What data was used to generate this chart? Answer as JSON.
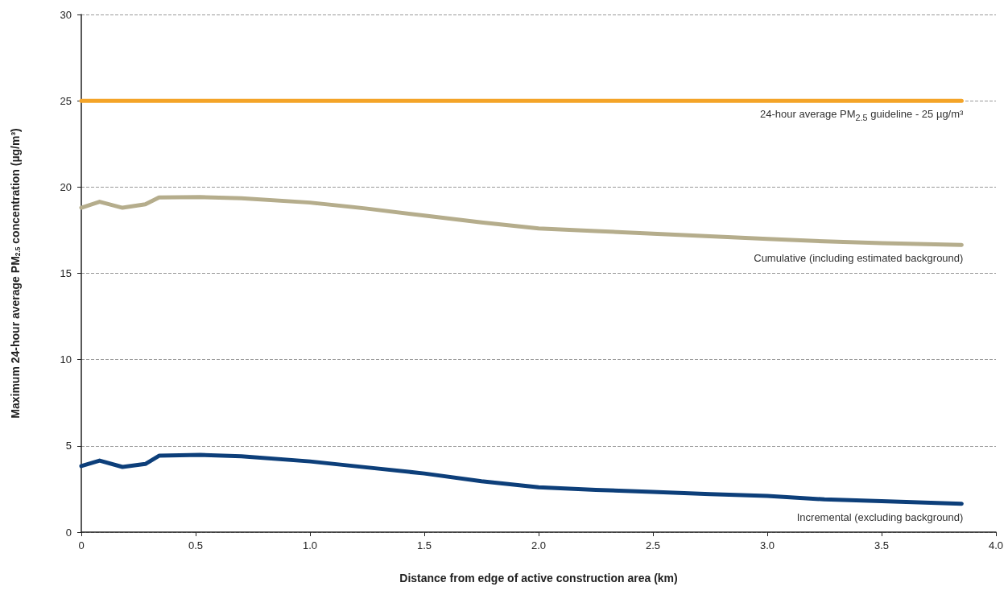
{
  "chart_data": {
    "type": "line",
    "xlabel": "Distance from edge of active construction area (km)",
    "ylabel": "Maximum 24-hour average PM$_{2.5}$ concentration (µg/m³)",
    "x": [
      0,
      0.08,
      0.18,
      0.28,
      0.34,
      0.52,
      0.7,
      1.0,
      1.25,
      1.5,
      1.75,
      2.0,
      2.25,
      2.5,
      2.75,
      3.0,
      3.25,
      3.5,
      3.85
    ],
    "series": [
      {
        "name": "24-hour average PM$_{2.5}$ guideline - 25 µg/m³",
        "color": "#f4a428",
        "x": [
          0,
          3.85
        ],
        "values": [
          25,
          25
        ]
      },
      {
        "name": "Cumulative (including estimated background)",
        "color": "#b5ad8c",
        "values": [
          18.8,
          19.15,
          18.8,
          19.0,
          19.4,
          19.42,
          19.35,
          19.1,
          18.75,
          18.35,
          17.95,
          17.6,
          17.45,
          17.3,
          17.15,
          17.0,
          16.85,
          16.75,
          16.65
        ]
      },
      {
        "name": "Incremental (excluding background)",
        "color": "#0d3f7a",
        "values": [
          3.83,
          4.15,
          3.78,
          3.95,
          4.43,
          4.48,
          4.4,
          4.1,
          3.75,
          3.4,
          2.95,
          2.6,
          2.45,
          2.33,
          2.2,
          2.1,
          1.9,
          1.8,
          1.65
        ]
      }
    ],
    "xlim": [
      0,
      4.0
    ],
    "xticks": [
      0,
      0.5,
      {
        "value": 1,
        "label": "1.0"
      },
      1.5,
      {
        "value": 2,
        "label": "2.0"
      },
      2.5,
      {
        "value": 3,
        "label": "3.0"
      },
      3.5,
      {
        "value": 4,
        "label": "4.0"
      }
    ],
    "ylim": [
      0,
      30
    ],
    "yticks": [
      0,
      5,
      10,
      15,
      20,
      25,
      30
    ],
    "grid": "y",
    "marker": "none",
    "line_style": "solid",
    "legend": false
  }
}
